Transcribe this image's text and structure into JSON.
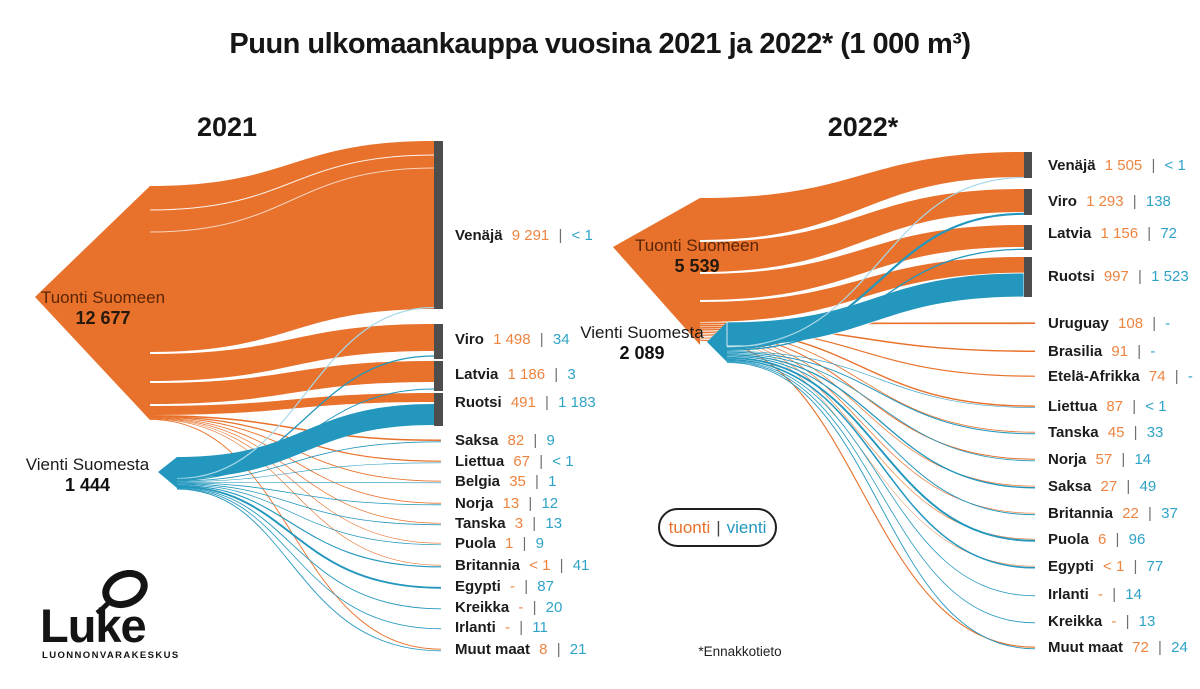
{
  "title": "Puun ulkomaankauppa vuosina 2021 ja 2022* (1 000 m³)",
  "footnote": "*Ennakkotieto",
  "separator": "|",
  "legend": {
    "import_label": "tuonti",
    "export_label": "vienti"
  },
  "logo": {
    "name": "Luke",
    "subtitle": "LUONNONVARAKESKUS"
  },
  "colors": {
    "import_flow": "#E8712B",
    "export_flow": "#2397BD",
    "node_bar": "#4D4D4D",
    "import_value_text": "#ED8440",
    "export_value_text": "#2FA3C6"
  },
  "diagrams": [
    {
      "year_label": "2021",
      "import_node": {
        "label": "Tuonti Suomeen",
        "value": "12 677"
      },
      "export_node": {
        "label": "Vienti Suomesta",
        "value": "1 444"
      },
      "rows": [
        {
          "name": "Venäjä",
          "imp": "9 291",
          "exp": "< 1"
        },
        {
          "name": "Viro",
          "imp": "1 498",
          "exp": "34"
        },
        {
          "name": "Latvia",
          "imp": "1 186",
          "exp": "3"
        },
        {
          "name": "Ruotsi",
          "imp": "491",
          "exp": "1 183"
        },
        {
          "name": "Saksa",
          "imp": "82",
          "exp": "9"
        },
        {
          "name": "Liettua",
          "imp": "67",
          "exp": "< 1"
        },
        {
          "name": "Belgia",
          "imp": "35",
          "exp": "1"
        },
        {
          "name": "Norja",
          "imp": "13",
          "exp": "12"
        },
        {
          "name": "Tanska",
          "imp": "3",
          "exp": "13"
        },
        {
          "name": "Puola",
          "imp": "1",
          "exp": "9"
        },
        {
          "name": "Britannia",
          "imp": "< 1",
          "exp": "41"
        },
        {
          "name": "Egypti",
          "imp": "-",
          "exp": "87"
        },
        {
          "name": "Kreikka",
          "imp": "-",
          "exp": "20"
        },
        {
          "name": "Irlanti",
          "imp": "-",
          "exp": "11"
        },
        {
          "name": "Muut maat",
          "imp": "8",
          "exp": "21"
        }
      ]
    },
    {
      "year_label": "2022*",
      "import_node": {
        "label": "Tuonti Suomeen",
        "value": "5 539"
      },
      "export_node": {
        "label": "Vienti Suomesta",
        "value": "2 089"
      },
      "rows": [
        {
          "name": "Venäjä",
          "imp": "1 505",
          "exp": "< 1"
        },
        {
          "name": "Viro",
          "imp": "1 293",
          "exp": "138"
        },
        {
          "name": "Latvia",
          "imp": "1 156",
          "exp": "72"
        },
        {
          "name": "Ruotsi",
          "imp": "997",
          "exp": "1 523"
        },
        {
          "name": "Uruguay",
          "imp": "108",
          "exp": "-"
        },
        {
          "name": "Brasilia",
          "imp": "91",
          "exp": "-"
        },
        {
          "name": "Etelä-Afrikka",
          "imp": "74",
          "exp": "-"
        },
        {
          "name": "Liettua",
          "imp": "87",
          "exp": "< 1"
        },
        {
          "name": "Tanska",
          "imp": "45",
          "exp": "33"
        },
        {
          "name": "Norja",
          "imp": "57",
          "exp": "14"
        },
        {
          "name": "Saksa",
          "imp": "27",
          "exp": "49"
        },
        {
          "name": "Britannia",
          "imp": "22",
          "exp": "37"
        },
        {
          "name": "Puola",
          "imp": "6",
          "exp": "96"
        },
        {
          "name": "Egypti",
          "imp": "< 1",
          "exp": "77"
        },
        {
          "name": "Irlanti",
          "imp": "-",
          "exp": "14"
        },
        {
          "name": "Kreikka",
          "imp": "-",
          "exp": "13"
        },
        {
          "name": "Muut maat",
          "imp": "72",
          "exp": "24"
        }
      ]
    }
  ],
  "chart_data": [
    {
      "type": "sankey",
      "title": "2021",
      "unit": "1 000 m³",
      "sources": [
        {
          "name": "Tuonti Suomeen",
          "total": 12677
        },
        {
          "name": "Vienti Suomesta",
          "total": 1444
        }
      ],
      "links": [
        {
          "target": "Venäjä",
          "tuonti": 9291,
          "vienti": "<1"
        },
        {
          "target": "Viro",
          "tuonti": 1498,
          "vienti": 34
        },
        {
          "target": "Latvia",
          "tuonti": 1186,
          "vienti": 3
        },
        {
          "target": "Ruotsi",
          "tuonti": 491,
          "vienti": 1183
        },
        {
          "target": "Saksa",
          "tuonti": 82,
          "vienti": 9
        },
        {
          "target": "Liettua",
          "tuonti": 67,
          "vienti": "<1"
        },
        {
          "target": "Belgia",
          "tuonti": 35,
          "vienti": 1
        },
        {
          "target": "Norja",
          "tuonti": 13,
          "vienti": 12
        },
        {
          "target": "Tanska",
          "tuonti": 3,
          "vienti": 13
        },
        {
          "target": "Puola",
          "tuonti": 1,
          "vienti": 9
        },
        {
          "target": "Britannia",
          "tuonti": "<1",
          "vienti": 41
        },
        {
          "target": "Egypti",
          "tuonti": null,
          "vienti": 87
        },
        {
          "target": "Kreikka",
          "tuonti": null,
          "vienti": 20
        },
        {
          "target": "Irlanti",
          "tuonti": null,
          "vienti": 11
        },
        {
          "target": "Muut maat",
          "tuonti": 8,
          "vienti": 21
        }
      ]
    },
    {
      "type": "sankey",
      "title": "2022*",
      "unit": "1 000 m³",
      "sources": [
        {
          "name": "Tuonti Suomeen",
          "total": 5539
        },
        {
          "name": "Vienti Suomesta",
          "total": 2089
        }
      ],
      "links": [
        {
          "target": "Venäjä",
          "tuonti": 1505,
          "vienti": "<1"
        },
        {
          "target": "Viro",
          "tuonti": 1293,
          "vienti": 138
        },
        {
          "target": "Latvia",
          "tuonti": 1156,
          "vienti": 72
        },
        {
          "target": "Ruotsi",
          "tuonti": 997,
          "vienti": 1523
        },
        {
          "target": "Uruguay",
          "tuonti": 108,
          "vienti": null
        },
        {
          "target": "Brasilia",
          "tuonti": 91,
          "vienti": null
        },
        {
          "target": "Etelä-Afrikka",
          "tuonti": 74,
          "vienti": null
        },
        {
          "target": "Liettua",
          "tuonti": 87,
          "vienti": "<1"
        },
        {
          "target": "Tanska",
          "tuonti": 45,
          "vienti": 33
        },
        {
          "target": "Norja",
          "tuonti": 57,
          "vienti": 14
        },
        {
          "target": "Saksa",
          "tuonti": 27,
          "vienti": 49
        },
        {
          "target": "Britannia",
          "tuonti": 22,
          "vienti": 37
        },
        {
          "target": "Puola",
          "tuonti": 6,
          "vienti": 96
        },
        {
          "target": "Egypti",
          "tuonti": "<1",
          "vienti": 77
        },
        {
          "target": "Irlanti",
          "tuonti": null,
          "vienti": 14
        },
        {
          "target": "Kreikka",
          "tuonti": null,
          "vienti": 13
        },
        {
          "target": "Muut maat",
          "tuonti": 72,
          "vienti": 24
        }
      ]
    }
  ]
}
